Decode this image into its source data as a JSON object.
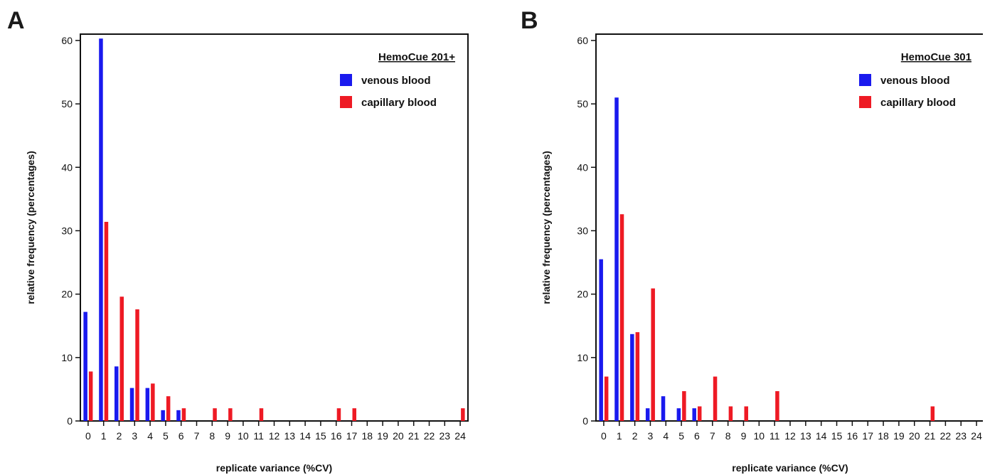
{
  "charts": [
    {
      "panel_label": "A",
      "chart_data": {
        "type": "bar",
        "title": "",
        "xlabel": "replicate variance (%CV)",
        "ylabel": "relative frequency (percentages)",
        "ylim": [
          0,
          61
        ],
        "yticks": [
          0,
          10,
          20,
          30,
          40,
          50,
          60
        ],
        "categories": [
          "0",
          "1",
          "2",
          "3",
          "4",
          "5",
          "6",
          "7",
          "8",
          "9",
          "10",
          "11",
          "12",
          "13",
          "14",
          "15",
          "16",
          "17",
          "18",
          "19",
          "20",
          "21",
          "22",
          "23",
          "24"
        ],
        "legend_title": "HemoCue 201+",
        "legend_position": "top-right",
        "grid": false,
        "series": [
          {
            "name": "venous blood",
            "color": "#1a1aee",
            "values": [
              17.2,
              60.3,
              8.6,
              5.2,
              5.2,
              1.7,
              1.7,
              0,
              0,
              0,
              0,
              0,
              0,
              0,
              0,
              0,
              0,
              0,
              0,
              0,
              0,
              0,
              0,
              0,
              0
            ]
          },
          {
            "name": "capillary blood",
            "color": "#ee1a24",
            "values": [
              7.8,
              31.4,
              19.6,
              17.6,
              5.9,
              3.9,
              2.0,
              0,
              2.0,
              2.0,
              0,
              2.0,
              0,
              0,
              0,
              0,
              2.0,
              2.0,
              0,
              0,
              0,
              0,
              0,
              0,
              2.0
            ]
          }
        ]
      }
    },
    {
      "panel_label": "B",
      "chart_data": {
        "type": "bar",
        "title": "",
        "xlabel": "replicate variance (%CV)",
        "ylabel": "relative frequency (percentages)",
        "ylim": [
          0,
          61
        ],
        "yticks": [
          0,
          10,
          20,
          30,
          40,
          50,
          60
        ],
        "categories": [
          "0",
          "1",
          "2",
          "3",
          "4",
          "5",
          "6",
          "7",
          "8",
          "9",
          "10",
          "11",
          "12",
          "13",
          "14",
          "15",
          "16",
          "17",
          "18",
          "19",
          "20",
          "21",
          "22",
          "23",
          "24"
        ],
        "legend_title": "HemoCue 301",
        "legend_position": "top-right",
        "grid": false,
        "series": [
          {
            "name": "venous blood",
            "color": "#1a1aee",
            "values": [
              25.5,
              51.0,
              13.7,
              2.0,
              3.9,
              2.0,
              2.0,
              0,
              0,
              0,
              0,
              0,
              0,
              0,
              0,
              0,
              0,
              0,
              0,
              0,
              0,
              0,
              0,
              0,
              0
            ]
          },
          {
            "name": "capillary blood",
            "color": "#ee1a24",
            "values": [
              7.0,
              32.6,
              14.0,
              20.9,
              0,
              4.7,
              2.3,
              7.0,
              2.3,
              2.3,
              0,
              4.7,
              0,
              0,
              0,
              0,
              0,
              0,
              0,
              0,
              0,
              2.3,
              0,
              0,
              0
            ]
          }
        ]
      }
    }
  ]
}
